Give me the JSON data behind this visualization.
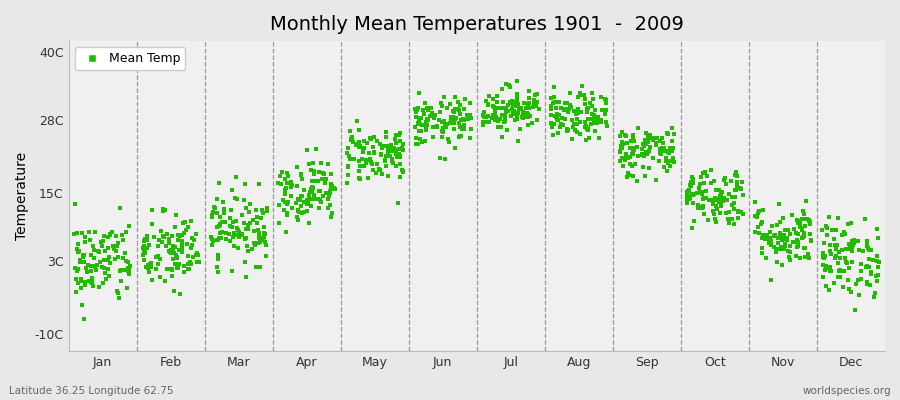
{
  "title": "Monthly Mean Temperatures 1901  -  2009",
  "ylabel": "Temperature",
  "footer_left": "Latitude 36.25 Longitude 62.75",
  "footer_right": "worldspecies.org",
  "legend_label": "Mean Temp",
  "bg_outer": "#e8e8e8",
  "bg_plot": "#f0f0f0",
  "marker_color": "#22bb00",
  "yticks": [
    -10,
    3,
    15,
    28,
    40
  ],
  "yticklabels": [
    "-10C",
    "3C",
    "15C",
    "28C",
    "40C"
  ],
  "ylim": [
    -13,
    42
  ],
  "months": [
    "Jan",
    "Feb",
    "Mar",
    "Apr",
    "May",
    "Jun",
    "Jul",
    "Aug",
    "Sep",
    "Oct",
    "Nov",
    "Dec"
  ],
  "num_years": 109,
  "monthly_mean_temps": [
    2.8,
    4.5,
    9.0,
    15.5,
    22.0,
    27.5,
    30.0,
    28.5,
    22.5,
    14.5,
    7.5,
    3.5
  ],
  "monthly_std_temps": [
    3.8,
    3.5,
    3.2,
    2.8,
    2.5,
    2.2,
    2.0,
    2.1,
    2.3,
    2.6,
    2.8,
    3.5
  ],
  "seed": 42
}
